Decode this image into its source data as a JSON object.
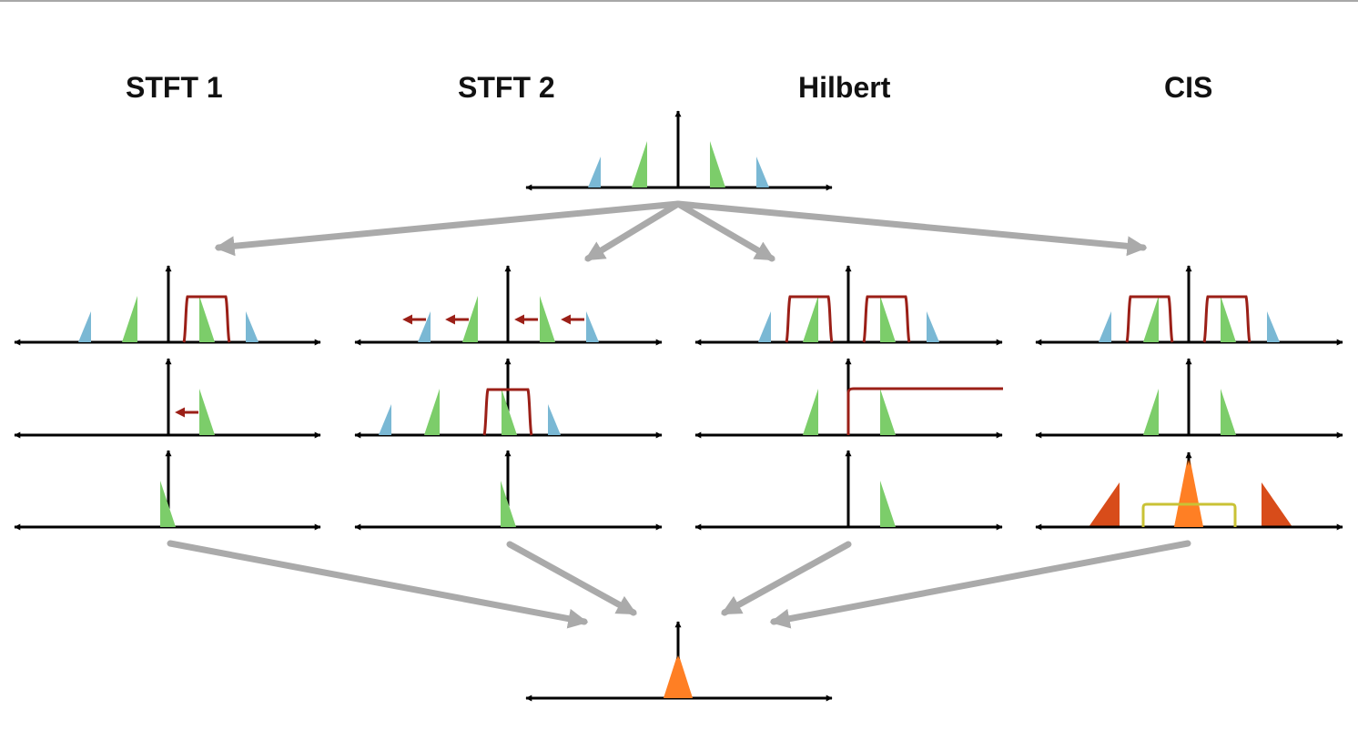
{
  "columns": [
    {
      "title": "STFT 1"
    },
    {
      "title": "STFT 2"
    },
    {
      "title": "Hilbert"
    },
    {
      "title": "CIS"
    }
  ],
  "colors": {
    "axis": "#000000",
    "flow_arrow": "#aaaaaa",
    "blue_component": "#7ab8d4",
    "green_component": "#7ccd6a",
    "filter": "#9b1f17",
    "shift_arrow": "#9b1f17",
    "orange_component": "#ff7f24",
    "dark_orange_component": "#d84c1a",
    "lowpass_filter": "#c9c235"
  }
}
